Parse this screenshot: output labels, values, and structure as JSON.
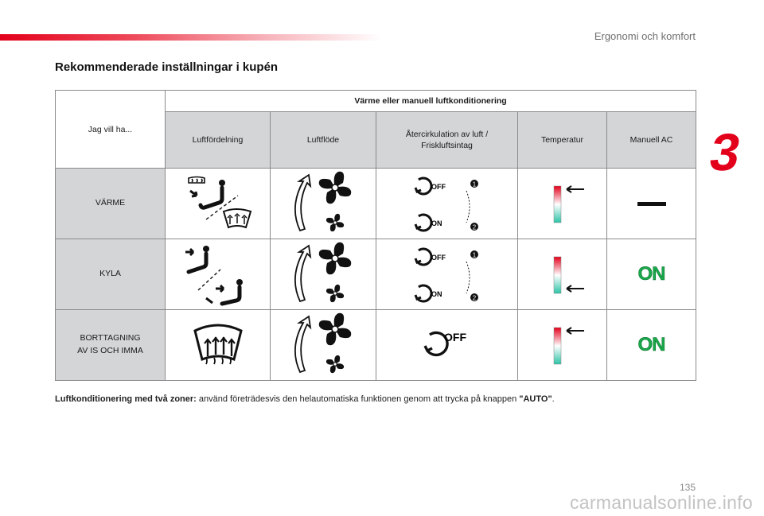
{
  "header": {
    "section": "Ergonomi och komfort",
    "chapter": "3"
  },
  "title": "Rekommenderade inställningar i kupén",
  "table": {
    "want_label": "Jag vill ha...",
    "group_label": "Värme eller manuell luftkonditionering",
    "columns": [
      "Luftfördelning",
      "Luftflöde",
      "Återcirkulation av luft /\nFriskluftsintag",
      "Temperatur",
      "Manuell AC"
    ],
    "rows": [
      {
        "label": "VÄRME",
        "ac_state": "off-bar"
      },
      {
        "label": "KYLA",
        "ac_state": "ON"
      },
      {
        "label": "BORTTAGNING\nAV IS OCH IMMA",
        "ac_state": "ON"
      }
    ],
    "recirc": {
      "off": "OFF",
      "on": "ON",
      "step1": "1",
      "step2": "2"
    }
  },
  "footnote": {
    "bold": "Luftkonditionering med två zoner:",
    "text": " använd företrädesvis den helautomatiska funktionen genom att trycka på knappen ",
    "button": "\"AUTO\"",
    "end": "."
  },
  "page_number": "135",
  "watermark": "carmanualsonline.info",
  "colors": {
    "accent": "#e3001b",
    "on_green": "#1aa84a",
    "header_bg": "#d3d5d7"
  },
  "icons": [
    "vent-icon",
    "fan-icon",
    "recirculation-icon",
    "temperature-gauge-icon",
    "defrost-icon",
    "arrow-left-icon"
  ]
}
